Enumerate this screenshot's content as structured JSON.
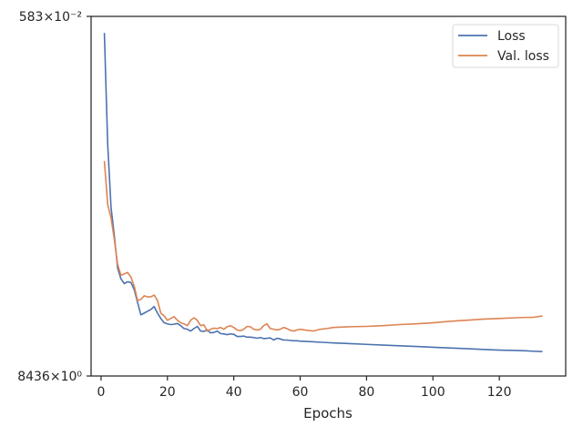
{
  "chart_data": {
    "type": "line",
    "xlabel": "Epochs",
    "ylabel": "",
    "yscale": "log",
    "xlim": [
      -3,
      140
    ],
    "ylim_tick_labels": [
      "8436×10⁰",
      "583×10⁻²"
    ],
    "x_ticks": [
      0,
      20,
      40,
      60,
      80,
      100,
      120
    ],
    "y_ticks": [
      "8436×10⁰",
      "583×10⁻²"
    ],
    "legend": {
      "position": "top-right"
    },
    "grid": false,
    "series_units": "relative position within y-axis span, 0 = lower tick, 1 = upper tick",
    "series": [
      {
        "name": "Loss",
        "color": "#4c72b0",
        "points": [
          [
            1,
            0.954
          ],
          [
            2,
            0.645
          ],
          [
            3,
            0.47
          ],
          [
            4,
            0.39
          ],
          [
            5,
            0.3
          ],
          [
            6,
            0.27
          ],
          [
            7,
            0.257
          ],
          [
            8,
            0.262
          ],
          [
            9,
            0.26
          ],
          [
            10,
            0.24
          ],
          [
            11,
            0.205
          ],
          [
            12,
            0.17
          ],
          [
            13,
            0.175
          ],
          [
            14,
            0.18
          ],
          [
            15,
            0.185
          ],
          [
            16,
            0.193
          ],
          [
            17,
            0.175
          ],
          [
            18,
            0.16
          ],
          [
            19,
            0.148
          ],
          [
            20,
            0.145
          ],
          [
            21,
            0.143
          ],
          [
            22,
            0.144
          ],
          [
            23,
            0.146
          ],
          [
            24,
            0.14
          ],
          [
            25,
            0.132
          ],
          [
            26,
            0.13
          ],
          [
            27,
            0.125
          ],
          [
            28,
            0.132
          ],
          [
            29,
            0.138
          ],
          [
            30,
            0.125
          ],
          [
            31,
            0.124
          ],
          [
            32,
            0.128
          ],
          [
            33,
            0.12
          ],
          [
            34,
            0.121
          ],
          [
            35,
            0.125
          ],
          [
            36,
            0.118
          ],
          [
            37,
            0.117
          ],
          [
            38,
            0.115
          ],
          [
            39,
            0.117
          ],
          [
            40,
            0.116
          ],
          [
            41,
            0.11
          ],
          [
            42,
            0.11
          ],
          [
            43,
            0.111
          ],
          [
            44,
            0.108
          ],
          [
            45,
            0.108
          ],
          [
            46,
            0.107
          ],
          [
            47,
            0.105
          ],
          [
            48,
            0.107
          ],
          [
            49,
            0.104
          ],
          [
            50,
            0.105
          ],
          [
            51,
            0.106
          ],
          [
            52,
            0.1
          ],
          [
            53,
            0.105
          ],
          [
            54,
            0.103
          ],
          [
            55,
            0.1
          ],
          [
            56,
            0.1
          ],
          [
            57,
            0.099
          ],
          [
            58,
            0.098
          ],
          [
            59,
            0.098
          ],
          [
            60,
            0.097
          ],
          [
            62,
            0.096
          ],
          [
            64,
            0.095
          ],
          [
            66,
            0.094
          ],
          [
            68,
            0.093
          ],
          [
            70,
            0.092
          ],
          [
            75,
            0.09
          ],
          [
            80,
            0.088
          ],
          [
            85,
            0.086
          ],
          [
            90,
            0.084
          ],
          [
            95,
            0.082
          ],
          [
            100,
            0.08
          ],
          [
            105,
            0.078
          ],
          [
            110,
            0.076
          ],
          [
            115,
            0.074
          ],
          [
            120,
            0.072
          ],
          [
            125,
            0.071
          ],
          [
            128,
            0.07
          ],
          [
            130,
            0.069
          ],
          [
            133,
            0.068
          ]
        ]
      },
      {
        "name": "Val. loss",
        "color": "#dd8452",
        "points": [
          [
            1,
            0.598
          ],
          [
            2,
            0.477
          ],
          [
            3,
            0.44
          ],
          [
            4,
            0.38
          ],
          [
            5,
            0.31
          ],
          [
            6,
            0.28
          ],
          [
            7,
            0.284
          ],
          [
            8,
            0.288
          ],
          [
            9,
            0.275
          ],
          [
            10,
            0.25
          ],
          [
            11,
            0.21
          ],
          [
            12,
            0.213
          ],
          [
            13,
            0.223
          ],
          [
            14,
            0.22
          ],
          [
            15,
            0.22
          ],
          [
            16,
            0.225
          ],
          [
            17,
            0.21
          ],
          [
            18,
            0.175
          ],
          [
            19,
            0.167
          ],
          [
            20,
            0.155
          ],
          [
            21,
            0.16
          ],
          [
            22,
            0.165
          ],
          [
            23,
            0.155
          ],
          [
            24,
            0.148
          ],
          [
            25,
            0.145
          ],
          [
            26,
            0.14
          ],
          [
            27,
            0.155
          ],
          [
            28,
            0.162
          ],
          [
            29,
            0.155
          ],
          [
            30,
            0.14
          ],
          [
            31,
            0.142
          ],
          [
            32,
            0.125
          ],
          [
            33,
            0.13
          ],
          [
            34,
            0.133
          ],
          [
            35,
            0.132
          ],
          [
            36,
            0.135
          ],
          [
            37,
            0.13
          ],
          [
            38,
            0.137
          ],
          [
            39,
            0.14
          ],
          [
            40,
            0.135
          ],
          [
            41,
            0.128
          ],
          [
            42,
            0.126
          ],
          [
            43,
            0.13
          ],
          [
            44,
            0.138
          ],
          [
            45,
            0.137
          ],
          [
            46,
            0.13
          ],
          [
            47,
            0.128
          ],
          [
            48,
            0.13
          ],
          [
            49,
            0.14
          ],
          [
            50,
            0.145
          ],
          [
            51,
            0.132
          ],
          [
            52,
            0.13
          ],
          [
            53,
            0.128
          ],
          [
            54,
            0.13
          ],
          [
            55,
            0.135
          ],
          [
            56,
            0.132
          ],
          [
            57,
            0.127
          ],
          [
            58,
            0.125
          ],
          [
            59,
            0.128
          ],
          [
            60,
            0.13
          ],
          [
            62,
            0.127
          ],
          [
            64,
            0.125
          ],
          [
            66,
            0.13
          ],
          [
            68,
            0.132
          ],
          [
            70,
            0.135
          ],
          [
            75,
            0.137
          ],
          [
            80,
            0.138
          ],
          [
            85,
            0.14
          ],
          [
            90,
            0.143
          ],
          [
            95,
            0.145
          ],
          [
            100,
            0.148
          ],
          [
            105,
            0.152
          ],
          [
            110,
            0.155
          ],
          [
            115,
            0.158
          ],
          [
            120,
            0.16
          ],
          [
            125,
            0.162
          ],
          [
            128,
            0.163
          ],
          [
            130,
            0.163
          ],
          [
            133,
            0.167
          ]
        ]
      }
    ]
  }
}
